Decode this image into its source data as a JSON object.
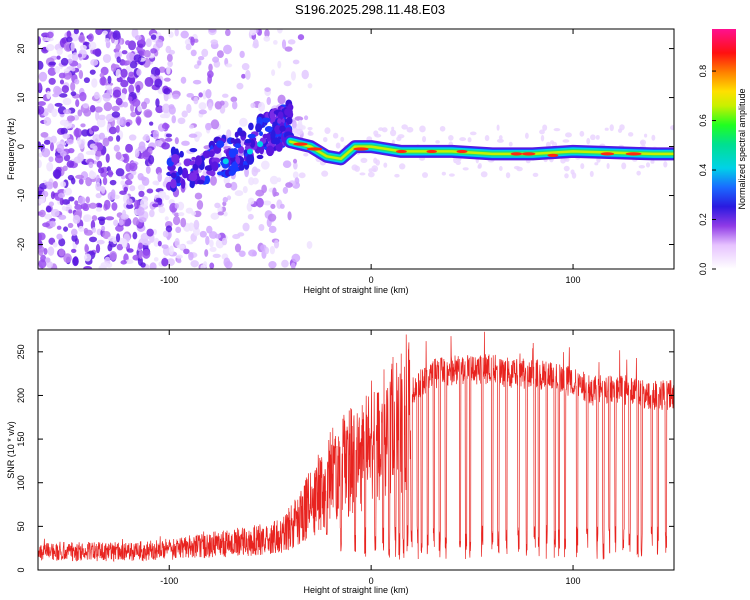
{
  "title": "S196.2025.298.11.48.E03",
  "chart_data": [
    {
      "type": "heatmap",
      "name": "spectrogram",
      "xlabel": "Height of straight line (km)",
      "ylabel": "Frequency (Hz)",
      "xlim": [
        -165,
        150
      ],
      "ylim": [
        -25,
        24
      ],
      "x_ticks": [
        -100,
        0,
        100
      ],
      "x_tick_labels": [
        "-100",
        "0",
        "100"
      ],
      "y_ticks": [
        20,
        10,
        0,
        -10,
        -20
      ],
      "y_tick_labels": [
        "20",
        "10",
        "0",
        "-10",
        "-20"
      ],
      "colorbar": {
        "label": "Normalized spectral amplitude",
        "range": [
          0.0,
          0.97
        ],
        "ticks": [
          0.0,
          0.2,
          0.4,
          0.6,
          0.8
        ],
        "tick_labels": [
          "0.0",
          "0.2",
          "0.4",
          "0.6",
          "0.8"
        ]
      },
      "ridge": {
        "description_points": [
          [
            -40,
            1
          ],
          [
            -30,
            0
          ],
          [
            -22,
            -2
          ],
          [
            -15,
            -2.5
          ],
          [
            -8,
            0
          ],
          [
            0,
            0
          ],
          [
            15,
            -1
          ],
          [
            40,
            -1
          ],
          [
            60,
            -1.5
          ],
          [
            80,
            -1.5
          ],
          [
            100,
            -1
          ],
          [
            140,
            -1.5
          ],
          [
            150,
            -1.5
          ]
        ]
      },
      "noise_region_x": [
        -165,
        -40
      ],
      "chirp": [
        [
          -100,
          -5
        ],
        [
          -70,
          -2
        ],
        [
          -50,
          3
        ],
        [
          -40,
          5
        ]
      ]
    },
    {
      "type": "line",
      "name": "snr",
      "xlabel": "Height of straight line (km)",
      "ylabel": "SNR (10 * v/v)",
      "xlim": [
        -165,
        150
      ],
      "ylim": [
        0,
        275
      ],
      "x_ticks": [
        -100,
        0,
        100
      ],
      "x_tick_labels": [
        "-100",
        "0",
        "100"
      ],
      "y_ticks": [
        0,
        50,
        100,
        150,
        200,
        250
      ],
      "y_tick_labels": [
        "0",
        "50",
        "100",
        "150",
        "200",
        "250"
      ],
      "color": "#e8231f",
      "envelope": {
        "x": [
          -165,
          -120,
          -100,
          -80,
          -60,
          -45,
          -38,
          -30,
          -20,
          -12,
          -5,
          0,
          5,
          10,
          15,
          20,
          25,
          30,
          40,
          50,
          60,
          70,
          80,
          90,
          100,
          110,
          120,
          130,
          140,
          150
        ],
        "y": [
          22,
          22,
          25,
          30,
          35,
          40,
          55,
          80,
          110,
          130,
          140,
          150,
          160,
          170,
          185,
          205,
          215,
          225,
          228,
          230,
          230,
          225,
          225,
          220,
          215,
          205,
          208,
          205,
          200,
          200
        ]
      },
      "dropout_x": [
        -22,
        -15,
        -8,
        -3,
        2,
        6,
        9,
        12,
        14,
        16,
        18,
        20,
        23,
        25,
        28,
        31,
        34,
        37,
        44,
        47,
        49,
        55,
        60,
        63,
        67,
        73,
        77,
        81,
        83,
        87,
        91,
        93,
        96,
        102,
        107,
        112,
        115,
        118,
        121,
        125,
        128,
        132,
        134,
        139,
        142,
        146
      ]
    }
  ]
}
